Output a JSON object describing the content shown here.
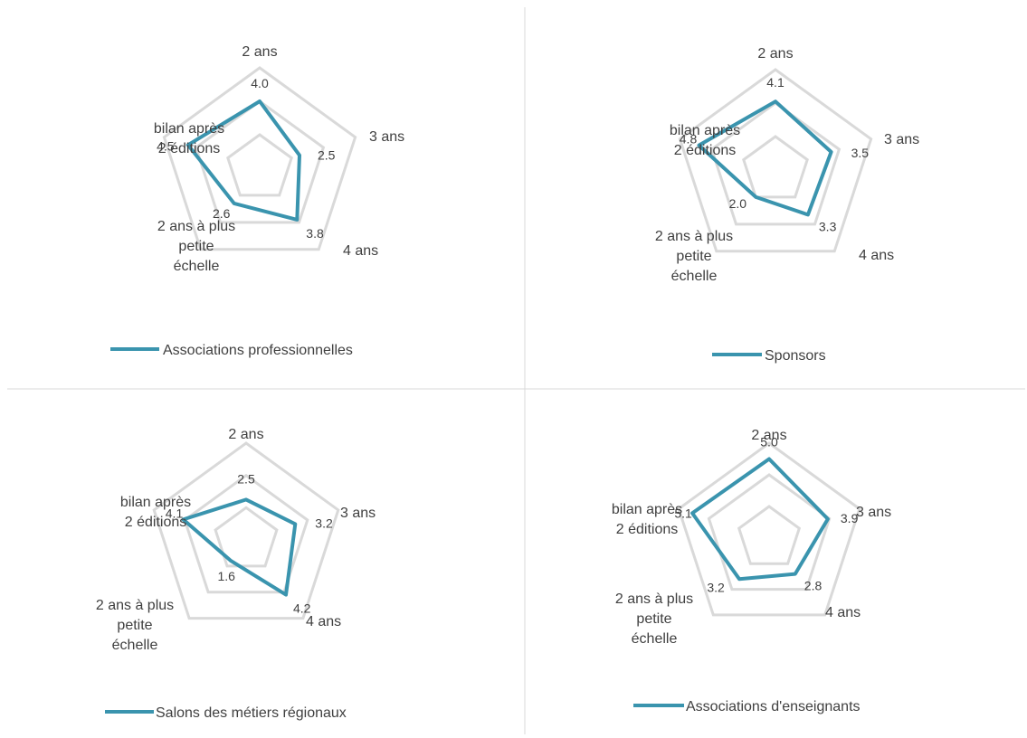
{
  "colors": {
    "series": "#3a94ae",
    "grid": "#d9d9d9",
    "divider": "#d9d9d9",
    "text": "#404040"
  },
  "chart_data": [
    {
      "type": "radar",
      "categories": [
        "2 ans",
        "3 ans",
        "4 ans",
        "2 ans à plus petite échelle",
        "bilan après 2 éditions"
      ],
      "category_lines": [
        [
          "2 ans"
        ],
        [
          "3 ans"
        ],
        [
          "4 ans"
        ],
        [
          "2 ans à plus",
          "petite",
          "échelle"
        ],
        [
          "bilan après",
          "2 éditions"
        ]
      ],
      "series": [
        {
          "name": "Associations professionnelles",
          "values": [
            4.0,
            2.5,
            3.8,
            2.6,
            4.5
          ]
        }
      ],
      "value_labels": [
        "4.0",
        "2.5",
        "3.8",
        "2.6",
        "4.5"
      ],
      "rlim": [
        0,
        6
      ],
      "grid": true,
      "legend": "bottom"
    },
    {
      "type": "radar",
      "categories": [
        "2 ans",
        "3 ans",
        "4 ans",
        "2 ans à plus petite échelle",
        "bilan après 2 éditions"
      ],
      "category_lines": [
        [
          "2 ans"
        ],
        [
          "3 ans"
        ],
        [
          "4 ans"
        ],
        [
          "2 ans à plus",
          "petite",
          "échelle"
        ],
        [
          "bilan après",
          "2 éditions"
        ]
      ],
      "series": [
        {
          "name": "Sponsors",
          "values": [
            4.1,
            3.5,
            3.3,
            2.0,
            4.8
          ]
        }
      ],
      "value_labels": [
        "4.1",
        "3.5",
        "3.3",
        "2.0",
        "4.8"
      ],
      "rlim": [
        0,
        6
      ],
      "grid": true,
      "legend": "bottom"
    },
    {
      "type": "radar",
      "categories": [
        "2 ans",
        "3 ans",
        "4 ans",
        "2 ans à plus petite échelle",
        "bilan après 2 éditions"
      ],
      "category_lines": [
        [
          "2 ans"
        ],
        [
          "3 ans"
        ],
        [
          "4 ans"
        ],
        [
          "2 ans à plus",
          "petite",
          "échelle"
        ],
        [
          "bilan après",
          "2 éditions"
        ]
      ],
      "series": [
        {
          "name": "Salons des métiers régionaux",
          "values": [
            2.5,
            3.2,
            4.2,
            1.6,
            4.1
          ]
        }
      ],
      "value_labels": [
        "2.5",
        "3.2",
        "4.2",
        "1.6",
        "4.1"
      ],
      "rlim": [
        0,
        6
      ],
      "grid": true,
      "legend": "bottom"
    },
    {
      "type": "radar",
      "categories": [
        "2 ans",
        "3 ans",
        "4 ans",
        "2 ans à plus petite échelle",
        "bilan après 2 éditions"
      ],
      "category_lines": [
        [
          "2 ans"
        ],
        [
          "3 ans"
        ],
        [
          "4 ans"
        ],
        [
          "2 ans à plus",
          "petite",
          "échelle"
        ],
        [
          "bilan après",
          "2 éditions"
        ]
      ],
      "series": [
        {
          "name": "Associations d'enseignants",
          "values": [
            5.0,
            3.9,
            2.8,
            3.2,
            5.1
          ]
        }
      ],
      "value_labels": [
        "5.0",
        "3.9",
        "2.8",
        "3.2",
        "5.1"
      ],
      "rlim": [
        0,
        6
      ],
      "grid": true,
      "legend": "bottom"
    }
  ]
}
